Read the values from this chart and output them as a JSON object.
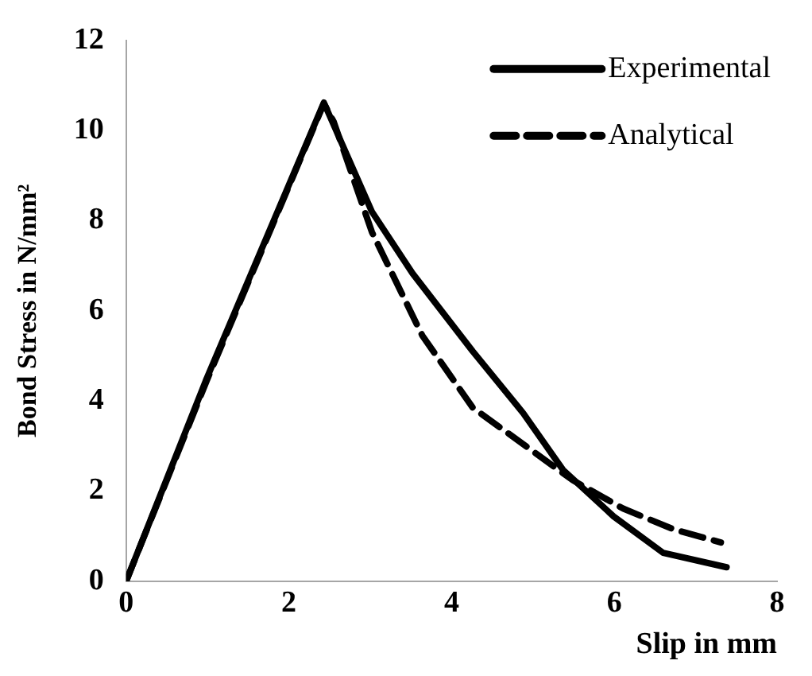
{
  "chart_data": {
    "type": "line",
    "xlabel": "Slip in mm",
    "ylabel": "Bond Stress in N/mm²",
    "xlim": [
      0,
      8
    ],
    "xticks": [
      0,
      2,
      4,
      6,
      8
    ],
    "ylim": [
      0,
      12
    ],
    "yticks": [
      0,
      2,
      4,
      6,
      8,
      10,
      12
    ],
    "grid": false,
    "legend": "top right",
    "marker": "none",
    "series": [
      {
        "name": "Experimental",
        "color": "#000000",
        "line_style": "solid",
        "x": [
          0,
          0.99,
          2.43,
          3.02,
          3.52,
          4.26,
          4.88,
          5.37,
          5.99,
          6.6,
          7.38
        ],
        "values": [
          0,
          4.5,
          10.62,
          8.2,
          6.83,
          5.1,
          3.73,
          2.47,
          1.44,
          0.63,
          0.31
        ]
      },
      {
        "name": "Analytical",
        "color": "#000000",
        "line_style": "dashed",
        "x": [
          0,
          0.99,
          2.43,
          2.55,
          3.02,
          3.64,
          4.26,
          4.88,
          5.49,
          6.11,
          6.73,
          7.31
        ],
        "values": [
          0,
          4.45,
          10.6,
          10.2,
          7.75,
          5.45,
          3.85,
          3.04,
          2.24,
          1.61,
          1.15,
          0.86
        ]
      }
    ]
  }
}
